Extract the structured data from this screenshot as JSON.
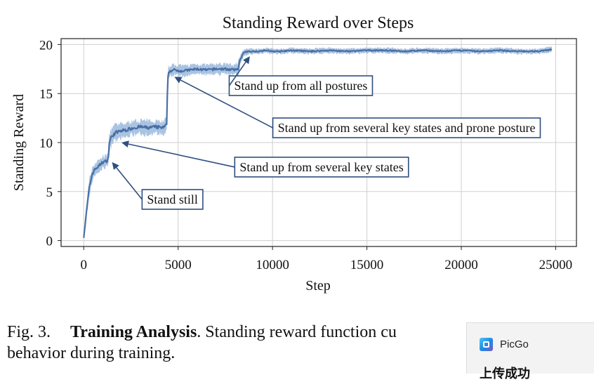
{
  "chart_data": {
    "type": "line",
    "title": "Standing Reward over Steps",
    "xlabel": "Step",
    "ylabel": "Standing Reward",
    "xlim": [
      -1200,
      26100
    ],
    "ylim": [
      -0.6,
      20.6
    ],
    "xticks": [
      0,
      5000,
      10000,
      15000,
      20000,
      25000
    ],
    "yticks": [
      0,
      5,
      10,
      15,
      20
    ],
    "grid": true,
    "series": [
      {
        "color": "#4a6fa5",
        "band_color": "#9ab8dc",
        "x": [
          0,
          150,
          300,
          450,
          600,
          800,
          1000,
          1200,
          1300,
          1350,
          1500,
          1700,
          2000,
          2300,
          2600,
          3000,
          3400,
          3800,
          4200,
          4400,
          4450,
          4550,
          4800,
          5200,
          5600,
          6000,
          6500,
          7000,
          7500,
          8000,
          8200,
          8300,
          8500,
          8800,
          9200,
          9600,
          10000,
          10500,
          11000,
          12000,
          13000,
          14000,
          15000,
          16000,
          17000,
          18000,
          19000,
          20000,
          21000,
          22000,
          23000,
          24000,
          24800
        ],
        "y": [
          0.3,
          3.0,
          5.5,
          6.8,
          7.3,
          7.6,
          8.0,
          8.1,
          8.3,
          10.0,
          10.7,
          11.0,
          11.2,
          11.3,
          11.5,
          11.6,
          11.5,
          11.6,
          11.5,
          11.8,
          16.8,
          17.3,
          17.4,
          17.3,
          17.4,
          17.5,
          17.4,
          17.5,
          17.5,
          17.4,
          17.6,
          18.6,
          19.2,
          19.3,
          19.3,
          19.4,
          19.3,
          19.3,
          19.4,
          19.3,
          19.4,
          19.3,
          19.4,
          19.4,
          19.3,
          19.4,
          19.3,
          19.4,
          19.3,
          19.4,
          19.3,
          19.3,
          19.5
        ],
        "spread": [
          0.1,
          0.7,
          0.9,
          0.8,
          0.7,
          0.7,
          0.7,
          0.7,
          0.8,
          1.0,
          1.0,
          0.9,
          0.8,
          0.8,
          0.8,
          0.8,
          0.8,
          0.8,
          0.8,
          0.8,
          0.8,
          0.7,
          0.6,
          0.6,
          0.6,
          0.6,
          0.6,
          0.6,
          0.6,
          0.6,
          0.8,
          0.7,
          0.35,
          0.3,
          0.3,
          0.3,
          0.3,
          0.3,
          0.3,
          0.3,
          0.3,
          0.3,
          0.3,
          0.3,
          0.3,
          0.3,
          0.3,
          0.3,
          0.3,
          0.3,
          0.3,
          0.3,
          0.3
        ]
      }
    ],
    "annotations": [
      {
        "text": "Stand still",
        "point": [
          1500,
          8.0
        ],
        "label_at": [
          4700,
          4.2
        ]
      },
      {
        "text": "Stand up from several key states",
        "point": [
          2000,
          10.0
        ],
        "label_at": [
          12600,
          7.5
        ]
      },
      {
        "text": "Stand up from several key states and prone posture",
        "point": [
          4800,
          16.7
        ],
        "label_at": [
          17100,
          11.5
        ]
      },
      {
        "text": "Stand up from all postures",
        "point": [
          8800,
          18.8
        ],
        "label_at": [
          11500,
          15.8
        ]
      }
    ]
  },
  "caption": {
    "fig_label": "Fig. 3.",
    "bold_title": "Training Analysis",
    "text": ". Standing reward function cu",
    "line2": "behavior during training."
  },
  "notification": {
    "app_name": "PicGo",
    "message": "上传成功"
  }
}
